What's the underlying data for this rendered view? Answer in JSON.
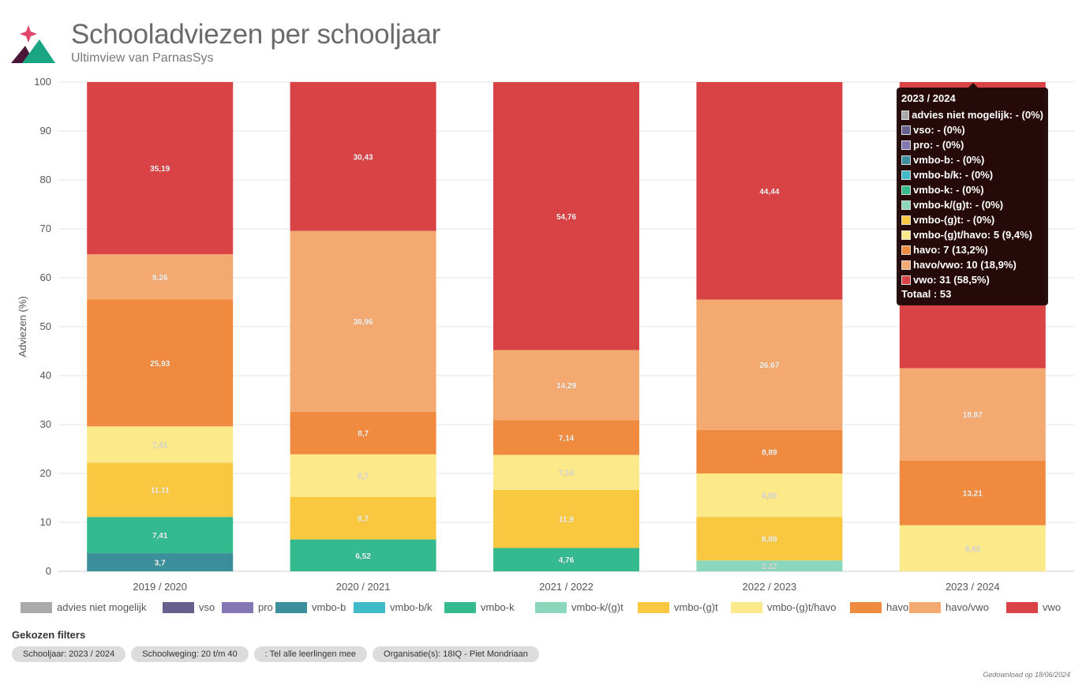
{
  "header": {
    "title": "Schooladviezen per schooljaar",
    "subtitle": "Ultimview van ParnasSys"
  },
  "chart_data": {
    "type": "bar",
    "stacked": true,
    "title": "",
    "xlabel": "",
    "ylabel": "Adviezen (%)",
    "ylim": [
      0,
      100
    ],
    "yticks": [
      0,
      10,
      20,
      30,
      40,
      50,
      60,
      70,
      80,
      90,
      100
    ],
    "grid": true,
    "legend_position": "bottom",
    "categories": [
      "2019 / 2020",
      "2020 / 2021",
      "2021 / 2022",
      "2022 / 2023",
      "2023 / 2024"
    ],
    "series": [
      {
        "name": "advies niet mogelijk",
        "color": "#aaaaaa",
        "values": [
          0,
          0,
          0,
          0,
          0
        ],
        "labels": [
          "",
          "",
          "",
          "",
          ""
        ]
      },
      {
        "name": "vso",
        "color": "#65608c",
        "values": [
          0,
          0,
          0,
          0,
          0
        ],
        "labels": [
          "",
          "",
          "",
          "",
          ""
        ]
      },
      {
        "name": "pro",
        "color": "#8577b4",
        "values": [
          0,
          0,
          0,
          0,
          0
        ],
        "labels": [
          "",
          "",
          "",
          "",
          ""
        ]
      },
      {
        "name": "vmbo-b",
        "color": "#3a8f9b",
        "values": [
          3.7,
          0,
          0,
          0,
          0
        ],
        "labels": [
          "3,7",
          "",
          "",
          "",
          ""
        ]
      },
      {
        "name": "vmbo-b/k",
        "color": "#3fbac7",
        "values": [
          0,
          0,
          0,
          0,
          0
        ],
        "labels": [
          "",
          "",
          "",
          "",
          ""
        ]
      },
      {
        "name": "vmbo-k",
        "color": "#35b98e",
        "values": [
          7.41,
          6.52,
          4.76,
          0,
          0
        ],
        "labels": [
          "7,41",
          "6,52",
          "4,76",
          "",
          ""
        ]
      },
      {
        "name": "vmbo-k/(g)t",
        "color": "#8ad7bb",
        "values": [
          0,
          0,
          0,
          2.22,
          0
        ],
        "labels": [
          "",
          "",
          "",
          "2,22",
          ""
        ]
      },
      {
        "name": "vmbo-(g)t",
        "color": "#f9c740",
        "values": [
          11.11,
          8.7,
          11.9,
          8.89,
          0
        ],
        "labels": [
          "11,11",
          "8,7",
          "11,9",
          "8,89",
          ""
        ]
      },
      {
        "name": "vmbo-(g)t/havo",
        "color": "#fbe98a",
        "values": [
          7.41,
          8.7,
          7.14,
          8.89,
          9.43
        ],
        "labels": [
          "7,41",
          "8,7",
          "7,14",
          "8,89",
          "9,43"
        ]
      },
      {
        "name": "havo",
        "color": "#f08a3e",
        "values": [
          25.93,
          8.7,
          7.14,
          8.89,
          13.21
        ],
        "labels": [
          "25,93",
          "8,7",
          "7,14",
          "8,89",
          "13,21"
        ]
      },
      {
        "name": "havo/vwo",
        "color": "#f3a96f",
        "values": [
          9.26,
          36.96,
          14.29,
          26.67,
          18.87
        ],
        "labels": [
          "9,26",
          "36,96",
          "14,29",
          "26,67",
          "18,87"
        ]
      },
      {
        "name": "vwo",
        "color": "#d94345",
        "values": [
          35.19,
          30.43,
          54.76,
          44.44,
          58.49
        ],
        "labels": [
          "35,19",
          "30,43",
          "54,76",
          "44,44",
          ""
        ]
      }
    ]
  },
  "tooltip": {
    "title": "2023 / 2024",
    "rows": [
      {
        "text": "advies niet mogelijk: - (0%)",
        "color": "#aaaaaa"
      },
      {
        "text": "vso: - (0%)",
        "color": "#65608c"
      },
      {
        "text": "pro: - (0%)",
        "color": "#8577b4"
      },
      {
        "text": "vmbo-b: - (0%)",
        "color": "#3a8f9b"
      },
      {
        "text": "vmbo-b/k: - (0%)",
        "color": "#3fbac7"
      },
      {
        "text": "vmbo-k: - (0%)",
        "color": "#35b98e"
      },
      {
        "text": "vmbo-k/(g)t: - (0%)",
        "color": "#8ad7bb"
      },
      {
        "text": "vmbo-(g)t: - (0%)",
        "color": "#f9c740"
      },
      {
        "text": "vmbo-(g)t/havo: 5 (9,4%)",
        "color": "#fbe98a"
      },
      {
        "text": "havo: 7 (13,2%)",
        "color": "#f08a3e"
      },
      {
        "text": "havo/vwo: 10 (18,9%)",
        "color": "#f3a96f"
      },
      {
        "text": "vwo: 31 (58,5%)",
        "color": "#d94345"
      }
    ],
    "total": "Totaal : 53"
  },
  "filters": {
    "title": "Gekozen filters",
    "chips": [
      "Schooljaar: 2023 / 2024",
      "Schoolweging: 20 t/m 40",
      ": Tel alle leerlingen mee",
      "Organisatie(s): 18IQ - Piet Mondriaan"
    ]
  },
  "footer": {
    "download_note": "Gedownload op 18/06/2024"
  }
}
